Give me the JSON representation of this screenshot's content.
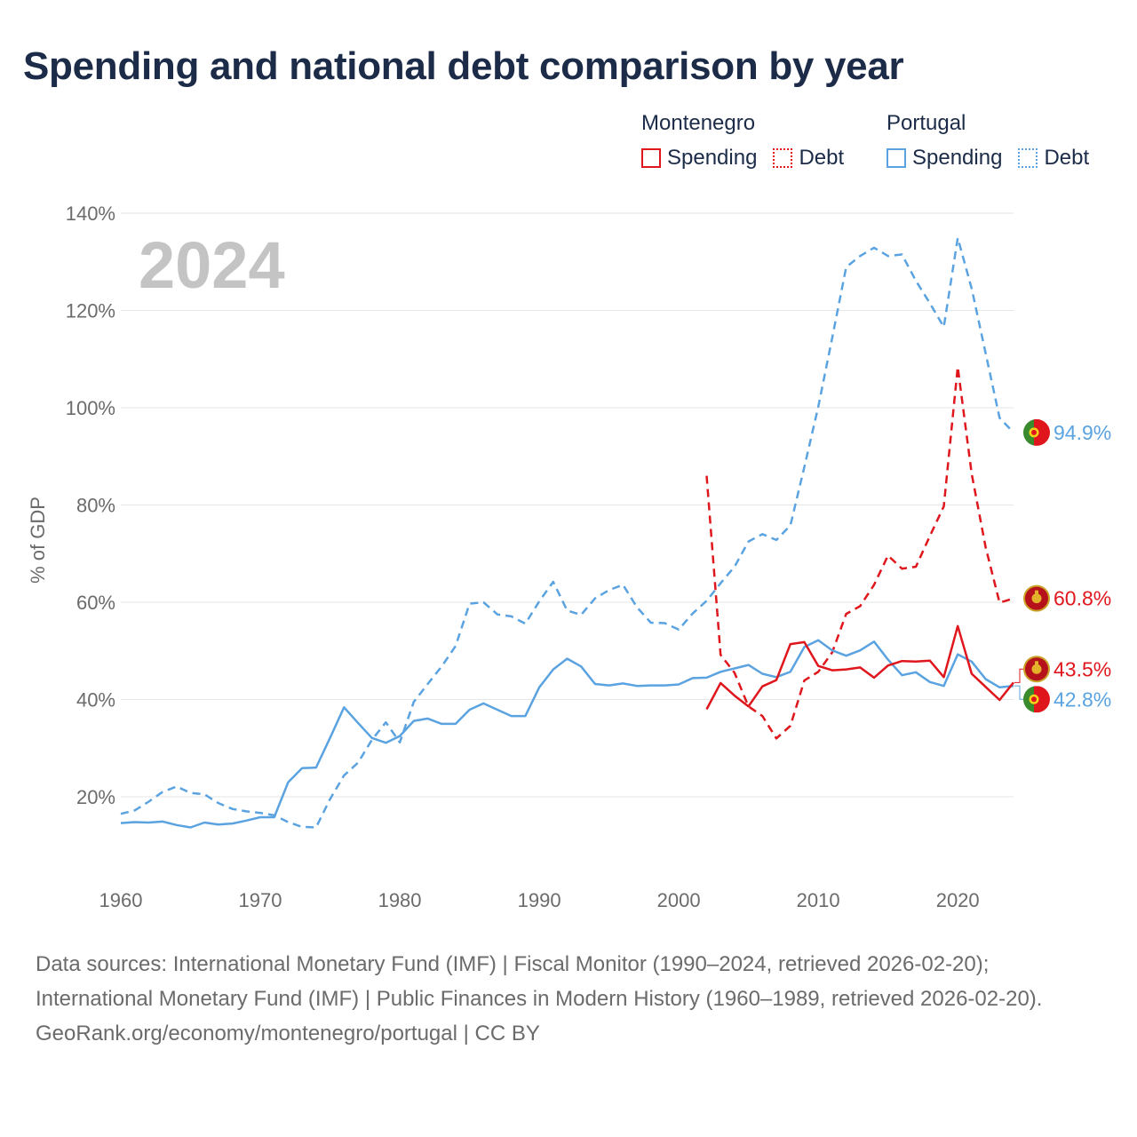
{
  "title": "Spending and national debt comparison by year",
  "legend": {
    "groups": [
      {
        "country": "Montenegro",
        "spending_label": "Spending",
        "debt_label": "Debt"
      },
      {
        "country": "Portugal",
        "spending_label": "Spending",
        "debt_label": "Debt"
      }
    ]
  },
  "footer": {
    "sources": "Data sources: International Monetary Fund (IMF) | Fiscal Monitor (1990–2024, retrieved 2026-02-20); International Monetary Fund (IMF) | Public Finances in Modern History (1960–1989, retrieved 2026-02-20).",
    "credit": "GeoRank.org/economy/montenegro/portugal | CC BY"
  },
  "colors": {
    "montenegro": "#e0161d",
    "portugal": "#5ba3e0",
    "grid": "#e6e6e6",
    "axis_text": "#6b6b6b",
    "year_watermark": "#c4c4c4"
  },
  "chart_data": {
    "type": "line",
    "title": "Spending and national debt comparison by year",
    "year_label": "2024",
    "xlabel": "",
    "ylabel": "% of GDP",
    "xlim": [
      1960,
      2024
    ],
    "ylim": [
      8,
      145
    ],
    "x_ticks": [
      1960,
      1970,
      1980,
      1990,
      2000,
      2010,
      2020
    ],
    "y_ticks": [
      20,
      40,
      60,
      80,
      100,
      120,
      140
    ],
    "y_tick_labels": [
      "20%",
      "40%",
      "60%",
      "80%",
      "100%",
      "120%",
      "140%"
    ],
    "series": [
      {
        "name": "Portugal Debt",
        "country": "Portugal",
        "metric": "Debt",
        "style": "dashed",
        "color": "#5ba3e0",
        "end_label": "94.9%",
        "points": [
          [
            1960,
            16.5
          ],
          [
            1961,
            17.2
          ],
          [
            1962,
            19
          ],
          [
            1963,
            21
          ],
          [
            1964,
            22.1
          ],
          [
            1965,
            20.8
          ],
          [
            1966,
            20.5
          ],
          [
            1967,
            18.7
          ],
          [
            1968,
            17.5
          ],
          [
            1969,
            17
          ],
          [
            1970,
            16.7
          ],
          [
            1971,
            16.2
          ],
          [
            1972,
            14.8
          ],
          [
            1973,
            13.8
          ],
          [
            1974,
            13.7
          ],
          [
            1975,
            19.5
          ],
          [
            1976,
            24.4
          ],
          [
            1977,
            27
          ],
          [
            1978,
            31.7
          ],
          [
            1979,
            35.3
          ],
          [
            1980,
            31.2
          ],
          [
            1981,
            39.5
          ],
          [
            1982,
            43.2
          ],
          [
            1983,
            46.8
          ],
          [
            1984,
            51
          ],
          [
            1985,
            59.7
          ],
          [
            1986,
            60
          ],
          [
            1987,
            57.5
          ],
          [
            1988,
            57.1
          ],
          [
            1989,
            55.6
          ],
          [
            1990,
            60.2
          ],
          [
            1991,
            64.2
          ],
          [
            1992,
            58.3
          ],
          [
            1993,
            57.4
          ],
          [
            1994,
            60.8
          ],
          [
            1995,
            62.5
          ],
          [
            1996,
            63.6
          ],
          [
            1997,
            59
          ],
          [
            1998,
            55.8
          ],
          [
            1999,
            55.7
          ],
          [
            2000,
            54.4
          ],
          [
            2001,
            57.7
          ],
          [
            2002,
            60.3
          ],
          [
            2003,
            63.9
          ],
          [
            2004,
            67.3
          ],
          [
            2005,
            72.5
          ],
          [
            2006,
            74
          ],
          [
            2007,
            72.8
          ],
          [
            2008,
            75.8
          ],
          [
            2009,
            87.8
          ],
          [
            2010,
            100.2
          ],
          [
            2011,
            114.4
          ],
          [
            2012,
            128.9
          ],
          [
            2013,
            131.2
          ],
          [
            2014,
            132.9
          ],
          [
            2015,
            131.2
          ],
          [
            2016,
            131.5
          ],
          [
            2017,
            126.1
          ],
          [
            2018,
            121.5
          ],
          [
            2019,
            116.6
          ],
          [
            2020,
            134.9
          ],
          [
            2021,
            124.5
          ],
          [
            2022,
            111.2
          ],
          [
            2023,
            97.9
          ],
          [
            2024,
            94.9
          ]
        ]
      },
      {
        "name": "Montenegro Debt",
        "country": "Montenegro",
        "metric": "Debt",
        "style": "dashed",
        "color": "#e0161d",
        "end_label": "60.8%",
        "points": [
          [
            2002,
            86
          ],
          [
            2003,
            49.2
          ],
          [
            2004,
            45.5
          ],
          [
            2005,
            38.6
          ],
          [
            2006,
            36.6
          ],
          [
            2007,
            32
          ],
          [
            2008,
            34.6
          ],
          [
            2009,
            43.9
          ],
          [
            2010,
            45.7
          ],
          [
            2011,
            49.7
          ],
          [
            2012,
            57.6
          ],
          [
            2013,
            59.2
          ],
          [
            2014,
            63.6
          ],
          [
            2015,
            69.6
          ],
          [
            2016,
            66.9
          ],
          [
            2017,
            67.3
          ],
          [
            2018,
            73.6
          ],
          [
            2019,
            79.7
          ],
          [
            2020,
            108.4
          ],
          [
            2021,
            86.4
          ],
          [
            2022,
            71.3
          ],
          [
            2023,
            59.9
          ],
          [
            2024,
            60.8
          ]
        ]
      },
      {
        "name": "Portugal Spending",
        "country": "Portugal",
        "metric": "Spending",
        "style": "solid",
        "color": "#5ba3e0",
        "end_label": "42.8%",
        "points": [
          [
            1960,
            14.6
          ],
          [
            1961,
            14.8
          ],
          [
            1962,
            14.7
          ],
          [
            1963,
            14.9
          ],
          [
            1964,
            14.2
          ],
          [
            1965,
            13.7
          ],
          [
            1966,
            14.7
          ],
          [
            1967,
            14.3
          ],
          [
            1968,
            14.5
          ],
          [
            1969,
            15.1
          ],
          [
            1970,
            15.8
          ],
          [
            1971,
            15.8
          ],
          [
            1972,
            23
          ],
          [
            1973,
            25.9
          ],
          [
            1974,
            26
          ],
          [
            1975,
            32.1
          ],
          [
            1976,
            38.4
          ],
          [
            1977,
            35.2
          ],
          [
            1978,
            32.1
          ],
          [
            1979,
            31.1
          ],
          [
            1980,
            32.5
          ],
          [
            1981,
            35.6
          ],
          [
            1982,
            36.1
          ],
          [
            1983,
            35
          ],
          [
            1984,
            35
          ],
          [
            1985,
            37.9
          ],
          [
            1986,
            39.2
          ],
          [
            1987,
            37.9
          ],
          [
            1988,
            36.6
          ],
          [
            1989,
            36.6
          ],
          [
            1990,
            42.5
          ],
          [
            1991,
            46.2
          ],
          [
            1992,
            48.4
          ],
          [
            1993,
            46.8
          ],
          [
            1994,
            43.2
          ],
          [
            1995,
            42.9
          ],
          [
            1996,
            43.3
          ],
          [
            1997,
            42.8
          ],
          [
            1998,
            42.9
          ],
          [
            1999,
            42.9
          ],
          [
            2000,
            43.1
          ],
          [
            2001,
            44.4
          ],
          [
            2002,
            44.5
          ],
          [
            2003,
            45.7
          ],
          [
            2004,
            46.4
          ],
          [
            2005,
            47.1
          ],
          [
            2006,
            45.3
          ],
          [
            2007,
            44.6
          ],
          [
            2008,
            45.7
          ],
          [
            2009,
            50.8
          ],
          [
            2010,
            52.2
          ],
          [
            2011,
            50.1
          ],
          [
            2012,
            49
          ],
          [
            2013,
            50.1
          ],
          [
            2014,
            51.9
          ],
          [
            2015,
            48.2
          ],
          [
            2016,
            45
          ],
          [
            2017,
            45.6
          ],
          [
            2018,
            43.6
          ],
          [
            2019,
            42.8
          ],
          [
            2020,
            49.3
          ],
          [
            2021,
            47.8
          ],
          [
            2022,
            44.2
          ],
          [
            2023,
            42.5
          ],
          [
            2024,
            42.8
          ]
        ]
      },
      {
        "name": "Montenegro Spending",
        "country": "Montenegro",
        "metric": "Spending",
        "style": "solid",
        "color": "#e0161d",
        "end_label": "43.5%",
        "points": [
          [
            2002,
            38
          ],
          [
            2003,
            43.4
          ],
          [
            2004,
            40.8
          ],
          [
            2005,
            38.6
          ],
          [
            2006,
            42.7
          ],
          [
            2007,
            44
          ],
          [
            2008,
            51.4
          ],
          [
            2009,
            51.8
          ],
          [
            2010,
            46.9
          ],
          [
            2011,
            46
          ],
          [
            2012,
            46.2
          ],
          [
            2013,
            46.6
          ],
          [
            2014,
            44.5
          ],
          [
            2015,
            47
          ],
          [
            2016,
            47.9
          ],
          [
            2017,
            47.8
          ],
          [
            2018,
            48
          ],
          [
            2019,
            44.6
          ],
          [
            2020,
            55.1
          ],
          [
            2021,
            45.3
          ],
          [
            2022,
            42.6
          ],
          [
            2023,
            39.9
          ],
          [
            2024,
            43.5
          ]
        ]
      }
    ]
  }
}
